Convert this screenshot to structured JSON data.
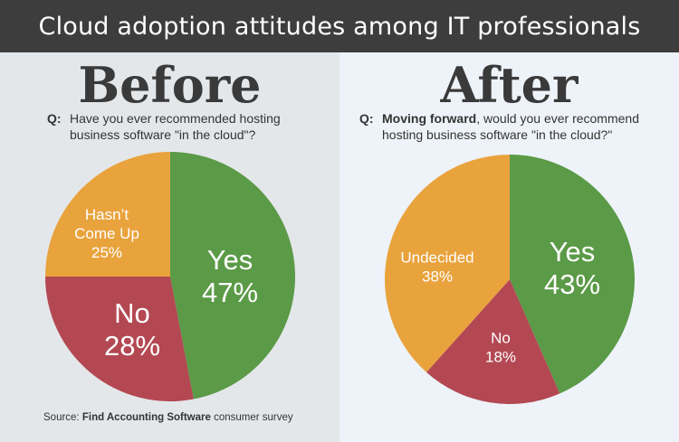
{
  "title": "Cloud adoption attitudes among IT professionals",
  "source": {
    "prefix": "Source:",
    "name": "Find Accounting Software",
    "suffix": "consumer survey"
  },
  "colors": {
    "yes": "#5b9a47",
    "no": "#b34853",
    "undecided": "#e9a33d"
  },
  "chart_data": [
    {
      "type": "pie",
      "panel_title": "Before",
      "question": {
        "prefix": "Q:",
        "text": "Have you ever recommended hosting business software \"in the cloud\"?"
      },
      "slices": [
        {
          "label": "Yes",
          "label_lines": [
            "Yes"
          ],
          "value": 47,
          "display": "47%",
          "color": "#5b9a47"
        },
        {
          "label": "No",
          "label_lines": [
            "No"
          ],
          "value": 28,
          "display": "28%",
          "color": "#b34853"
        },
        {
          "label": "Hasn't Come Up",
          "label_lines": [
            "Hasn’t",
            "Come Up"
          ],
          "value": 25,
          "display": "25%",
          "color": "#e9a33d"
        }
      ]
    },
    {
      "type": "pie",
      "panel_title": "After",
      "question": {
        "prefix": "Q:",
        "emphasis": "Moving forward",
        "text": ", would you ever recommend hosting business software \"in the cloud?\""
      },
      "slices": [
        {
          "label": "Yes",
          "label_lines": [
            "Yes"
          ],
          "value": 43,
          "display": "43%",
          "color": "#5b9a47"
        },
        {
          "label": "No",
          "label_lines": [
            "No"
          ],
          "value": 18,
          "display": "18%",
          "color": "#b34853"
        },
        {
          "label": "Undecided",
          "label_lines": [
            "Undecided"
          ],
          "value": 38,
          "display": "38%",
          "color": "#e9a33d"
        }
      ]
    }
  ]
}
